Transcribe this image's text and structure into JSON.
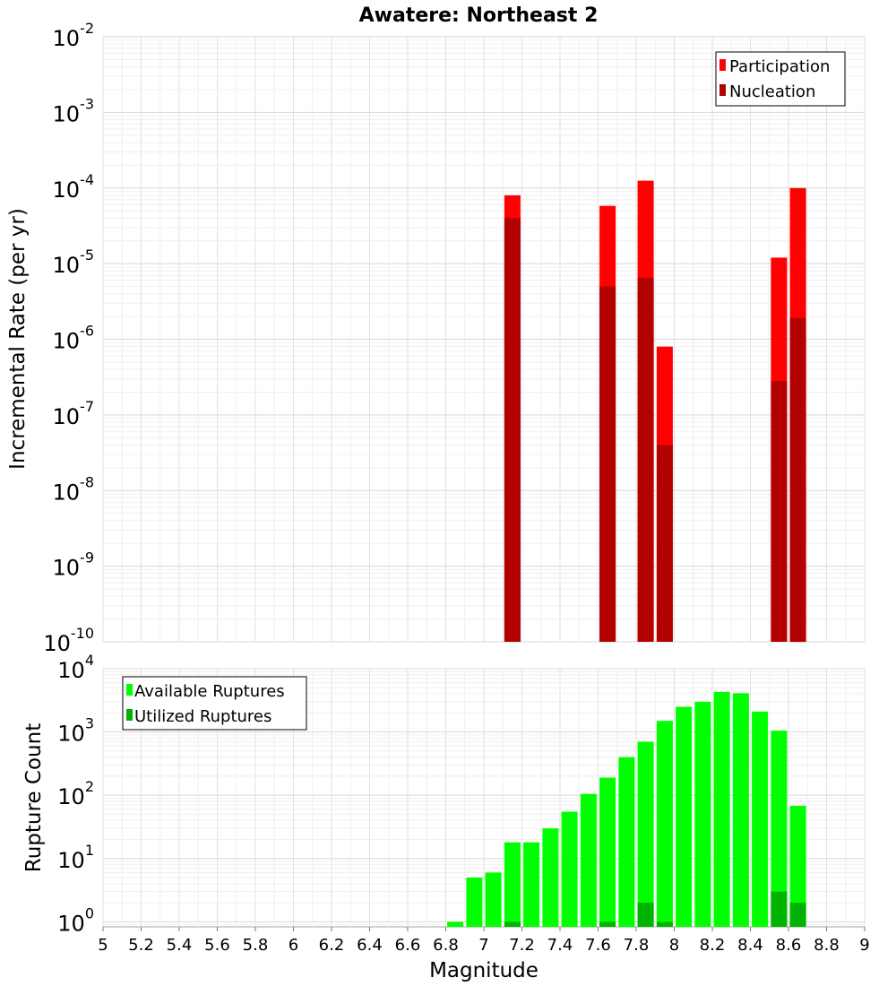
{
  "chart_data": [
    {
      "id": "rates",
      "type": "bar",
      "title": "Awatere: Northeast 2",
      "ylabel": "Incremental Rate (per yr)",
      "yscale": "log",
      "ylim_exp": [
        -10,
        -2
      ],
      "ytick_exponents": [
        "-10",
        "-9",
        "-8",
        "-7",
        "-6",
        "-5",
        "-4",
        "-3",
        "-2"
      ],
      "legend_position": "top-right",
      "series": [
        {
          "name": "Participation",
          "color": "#ff0000",
          "points": [
            {
              "x": 7.15,
              "y": 8e-05
            },
            {
              "x": 7.65,
              "y": 5.8e-05
            },
            {
              "x": 7.85,
              "y": 0.000125
            },
            {
              "x": 7.95,
              "y": 8e-07
            },
            {
              "x": 8.55,
              "y": 1.2e-05
            },
            {
              "x": 8.65,
              "y": 0.0001
            }
          ]
        },
        {
          "name": "Nucleation",
          "color": "#b30000",
          "points": [
            {
              "x": 7.15,
              "y": 4e-05
            },
            {
              "x": 7.65,
              "y": 5e-06
            },
            {
              "x": 7.85,
              "y": 6.5e-06
            },
            {
              "x": 7.95,
              "y": 4e-08
            },
            {
              "x": 8.55,
              "y": 2.8e-07
            },
            {
              "x": 8.65,
              "y": 1.9e-06
            }
          ]
        }
      ]
    },
    {
      "id": "counts",
      "type": "bar",
      "ylabel": "Rupture Count",
      "xlabel": "Magnitude",
      "yscale": "log",
      "ylim_exp": [
        -0.08,
        4
      ],
      "ytick_exponents": [
        "0",
        "1",
        "2",
        "3",
        "4"
      ],
      "legend_position": "top-left",
      "xlim": [
        5,
        9
      ],
      "xtick_labels": [
        "5",
        "5.2",
        "5.4",
        "5.6",
        "5.8",
        "6",
        "6.2",
        "6.4",
        "6.6",
        "6.8",
        "7",
        "7.2",
        "7.4",
        "7.6",
        "7.8",
        "8",
        "8.2",
        "8.4",
        "8.6",
        "8.8",
        "9"
      ],
      "series": [
        {
          "name": "Available Ruptures",
          "color": "#00ff00",
          "points": [
            {
              "x": 6.85,
              "y": 1
            },
            {
              "x": 6.95,
              "y": 5
            },
            {
              "x": 7.05,
              "y": 6
            },
            {
              "x": 7.15,
              "y": 18
            },
            {
              "x": 7.25,
              "y": 18
            },
            {
              "x": 7.35,
              "y": 30
            },
            {
              "x": 7.45,
              "y": 55
            },
            {
              "x": 7.55,
              "y": 105
            },
            {
              "x": 7.65,
              "y": 190
            },
            {
              "x": 7.75,
              "y": 400
            },
            {
              "x": 7.85,
              "y": 700
            },
            {
              "x": 7.95,
              "y": 1500
            },
            {
              "x": 8.05,
              "y": 2500
            },
            {
              "x": 8.15,
              "y": 3000
            },
            {
              "x": 8.25,
              "y": 4300
            },
            {
              "x": 8.35,
              "y": 4100
            },
            {
              "x": 8.45,
              "y": 2100
            },
            {
              "x": 8.55,
              "y": 1050
            },
            {
              "x": 8.65,
              "y": 68
            }
          ]
        },
        {
          "name": "Utilized Ruptures",
          "color": "#00b300",
          "points": [
            {
              "x": 7.15,
              "y": 1
            },
            {
              "x": 7.65,
              "y": 1
            },
            {
              "x": 7.85,
              "y": 2
            },
            {
              "x": 7.95,
              "y": 1
            },
            {
              "x": 8.55,
              "y": 3
            },
            {
              "x": 8.65,
              "y": 2
            }
          ]
        }
      ]
    }
  ]
}
